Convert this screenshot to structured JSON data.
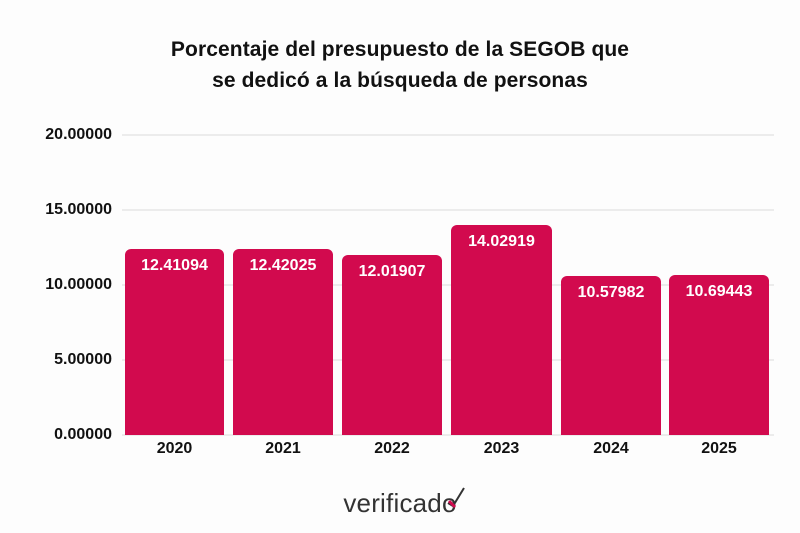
{
  "title": {
    "line1": "Porcentaje del presupuesto de la SEGOB que",
    "line2": "se dedicó a la búsqueda de personas"
  },
  "colors": {
    "bar": "#d20a4e",
    "text": "#111111",
    "grid": "#ececec",
    "background": "#fdfdfd"
  },
  "y_axis": {
    "ticks": [
      "20.00000",
      "15.00000",
      "10.00000",
      "5.00000",
      "0.00000"
    ]
  },
  "x_axis": {
    "ticks": [
      "2020",
      "2021",
      "2022",
      "2023",
      "2024",
      "2025"
    ]
  },
  "bars": [
    {
      "year": "2020",
      "label": "12.41094"
    },
    {
      "year": "2021",
      "label": "12.42025"
    },
    {
      "year": "2022",
      "label": "12.01907"
    },
    {
      "year": "2023",
      "label": "14.02919"
    },
    {
      "year": "2024",
      "label": "10.57982"
    },
    {
      "year": "2025",
      "label": "10.69443"
    }
  ],
  "footer": {
    "logo_text": "verificad",
    "logo_mark": "o"
  },
  "chart_data": {
    "type": "bar",
    "title": "Porcentaje del presupuesto de la SEGOB que se dedicó a la búsqueda de personas",
    "categories": [
      "2020",
      "2021",
      "2022",
      "2023",
      "2024",
      "2025"
    ],
    "values": [
      12.41094,
      12.42025,
      12.01907,
      14.02919,
      10.57982,
      10.69443
    ],
    "xlabel": "",
    "ylabel": "",
    "ylim": [
      0,
      20
    ],
    "yticks": [
      0,
      5,
      10,
      15,
      20
    ],
    "grid": true,
    "legend": null,
    "data_labels": true
  }
}
